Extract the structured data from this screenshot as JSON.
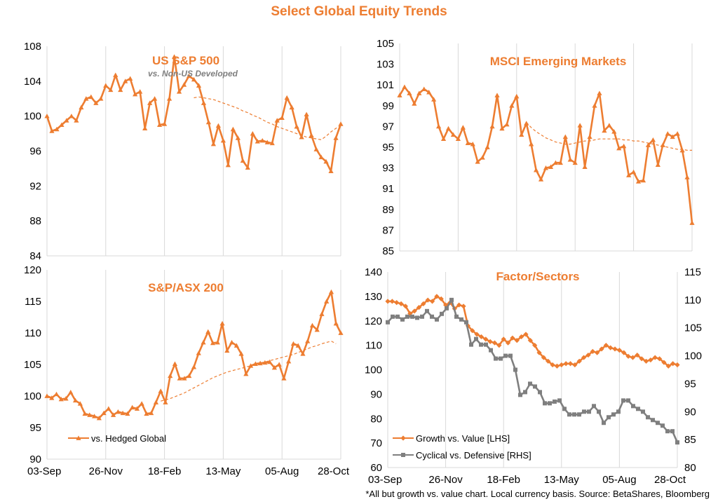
{
  "page": {
    "title": "Select Global Equity Trends",
    "footnote": "*All but growth vs. value chart. Local currency basis. Source: BetaShares, Bloomberg"
  },
  "colors": {
    "primary": "#ED7D31",
    "secondary": "#7F7F7F",
    "grid": "#D9D9D9",
    "axis": "#000000"
  },
  "x_tick_labels": [
    "03-Sep",
    "26-Nov",
    "18-Feb",
    "13-May",
    "05-Aug",
    "28-Oct"
  ],
  "chart_data": [
    {
      "id": "us",
      "type": "line",
      "title": "US S&P 500",
      "subtitle": "vs. Non-US Developed",
      "ylim": [
        84,
        108
      ],
      "yticks": [
        84,
        88,
        92,
        96,
        100,
        104,
        108
      ],
      "series": [
        {
          "role": "main",
          "values": [
            100.0,
            98.3,
            98.5,
            99.0,
            99.5,
            100.0,
            99.5,
            101.0,
            102.0,
            102.2,
            101.5,
            102.0,
            103.5,
            103.0,
            104.7,
            103.0,
            104.0,
            104.3,
            102.5,
            102.8,
            98.6,
            101.5,
            102.0,
            99.0,
            99.1,
            102.0,
            106.8,
            102.8,
            103.6,
            104.6,
            104.2,
            103.5,
            101.5,
            99.3,
            96.8,
            98.9,
            97.2,
            94.4,
            98.5,
            97.5,
            94.9,
            94.1,
            98.0,
            97.1,
            97.2,
            97.0,
            96.9,
            99.5,
            99.8,
            102.1,
            101.0,
            98.8,
            97.6,
            100.2,
            97.8,
            96.2,
            95.3,
            94.8,
            93.7,
            97.5,
            99.1
          ]
        },
        {
          "role": "trend",
          "start": 30,
          "values": [
            102.1,
            102.2,
            102.1,
            102.0,
            101.9,
            101.7,
            101.5,
            101.3,
            101.1,
            100.9,
            100.6,
            100.4,
            100.1,
            99.9,
            99.6,
            99.3,
            99.1,
            98.8,
            98.6,
            98.4,
            98.2,
            98.0,
            97.8,
            97.6,
            97.5,
            97.4,
            97.3,
            97.7,
            98.2,
            98.6,
            98.9
          ]
        }
      ]
    },
    {
      "id": "em",
      "type": "line",
      "title": "MSCI Emerging Markets",
      "ylim": [
        85,
        105
      ],
      "yticks": [
        85,
        87,
        89,
        91,
        93,
        95,
        97,
        99,
        101,
        103,
        105
      ],
      "series": [
        {
          "role": "main",
          "values": [
            100.0,
            100.8,
            100.2,
            99.2,
            100.2,
            100.6,
            100.3,
            99.6,
            97.0,
            95.8,
            96.8,
            96.2,
            95.8,
            96.9,
            95.4,
            95.3,
            93.6,
            94.0,
            95.0,
            97.0,
            100.0,
            96.8,
            97.2,
            99.0,
            99.9,
            96.2,
            97.3,
            95.3,
            92.8,
            91.9,
            93.0,
            93.1,
            93.5,
            93.5,
            96.0,
            93.8,
            93.5,
            97.1,
            93.1,
            96.0,
            99.0,
            100.2,
            96.6,
            97.1,
            96.5,
            94.9,
            95.1,
            92.3,
            92.6,
            91.7,
            91.8,
            95.2,
            95.7,
            93.3,
            95.2,
            96.3,
            96.0,
            96.3,
            94.7,
            92.1,
            87.7
          ]
        },
        {
          "role": "trend",
          "start": 26,
          "values": [
            97.4,
            96.9,
            96.5,
            96.2,
            95.9,
            95.7,
            95.5,
            95.4,
            95.3,
            95.3,
            95.4,
            95.5,
            95.6,
            95.6,
            95.7,
            95.8,
            95.8,
            95.8,
            95.8,
            95.8,
            95.7,
            95.7,
            95.6,
            95.6,
            95.5,
            95.4,
            95.3,
            95.2,
            95.1,
            95.0,
            94.9,
            94.8,
            94.8,
            94.7,
            94.7
          ]
        }
      ]
    },
    {
      "id": "asx",
      "type": "line",
      "title": "S&P/ASX 200",
      "ylim": [
        90,
        120
      ],
      "yticks": [
        90,
        95,
        100,
        105,
        110,
        115,
        120
      ],
      "legend": {
        "position": "bottom-left",
        "entries": [
          "vs. Hedged Global"
        ]
      },
      "series": [
        {
          "role": "main",
          "name": "vs. Hedged Global",
          "values": [
            100.0,
            99.7,
            100.3,
            99.5,
            99.6,
            100.6,
            99.3,
            98.8,
            97.2,
            97.0,
            96.8,
            96.5,
            97.3,
            98.0,
            97.0,
            97.5,
            97.3,
            97.2,
            98.2,
            98.0,
            98.8,
            97.2,
            97.3,
            99.0,
            100.8,
            99.0,
            103.2,
            105.1,
            102.8,
            102.8,
            103.2,
            104.6,
            106.8,
            108.5,
            110.2,
            108.4,
            108.5,
            111.5,
            107.2,
            108.5,
            108.0,
            106.7,
            103.5,
            104.8,
            105.1,
            105.2,
            105.3,
            105.4,
            104.5,
            105.0,
            102.8,
            105.5,
            108.3,
            108.0,
            106.7,
            108.7,
            111.2,
            110.5,
            113.0,
            115.0,
            116.5,
            111.5,
            110.0
          ]
        },
        {
          "role": "trend",
          "start": 24,
          "values": [
            99.2,
            99.4,
            99.6,
            99.9,
            100.2,
            100.5,
            100.9,
            101.3,
            101.7,
            102.1,
            102.5,
            102.9,
            103.2,
            103.5,
            103.8,
            104.0,
            104.2,
            104.4,
            104.6,
            104.8,
            105.0,
            105.2,
            105.4,
            105.6,
            105.8,
            106.0,
            106.2,
            106.4,
            106.6,
            106.9,
            107.2,
            107.5,
            107.8,
            108.0,
            108.3,
            108.5,
            108.7,
            108.3
          ]
        }
      ]
    },
    {
      "id": "factor",
      "type": "line",
      "title": "Factor/Sectors",
      "ylim_left": [
        60,
        140
      ],
      "yticks_left": [
        60,
        70,
        80,
        90,
        100,
        110,
        120,
        130,
        140
      ],
      "ylim_right": [
        80,
        115
      ],
      "yticks_right": [
        80,
        85,
        90,
        95,
        100,
        105,
        110,
        115
      ],
      "legend": {
        "position": "bottom-left",
        "entries": [
          "Growth vs. Value [LHS]",
          "Cyclical vs. Defensive [RHS]"
        ]
      },
      "series": [
        {
          "role": "lhs",
          "name": "Growth vs. Value [LHS]",
          "values": [
            128.0,
            128.0,
            127.5,
            127.0,
            126.0,
            123.0,
            124.0,
            125.5,
            127.0,
            128.5,
            128.0,
            130.0,
            129.0,
            126.5,
            127.5,
            125.0,
            126.5,
            126.0,
            118.0,
            116.0,
            114.5,
            113.5,
            112.5,
            111.5,
            111.0,
            110.0,
            112.5,
            111.0,
            113.0,
            112.0,
            113.5,
            114.5,
            112.0,
            110.0,
            107.0,
            105.0,
            103.5,
            102.0,
            101.5,
            102.0,
            102.5,
            102.5,
            102.0,
            103.5,
            105.0,
            106.0,
            107.5,
            107.0,
            108.5,
            110.0,
            109.0,
            108.5,
            108.0,
            107.0,
            105.5,
            105.0,
            106.0,
            104.5,
            103.5,
            104.0,
            105.0,
            104.5,
            103.0,
            101.5,
            102.5,
            102.0
          ]
        },
        {
          "role": "rhs",
          "name": "Cyclical vs. Defensive [RHS]",
          "values": [
            106.0,
            107.0,
            107.0,
            106.5,
            107.0,
            107.0,
            106.8,
            107.0,
            108.0,
            107.0,
            106.5,
            107.5,
            108.5,
            110.0,
            107.0,
            106.5,
            106.0,
            102.0,
            103.0,
            102.0,
            102.0,
            101.0,
            99.5,
            99.5,
            100.0,
            100.0,
            97.5,
            93.0,
            93.5,
            95.0,
            94.5,
            93.5,
            91.5,
            91.5,
            91.8,
            92.0,
            90.5,
            89.5,
            89.5,
            89.5,
            90.0,
            90.0,
            91.0,
            90.0,
            88.0,
            89.0,
            89.5,
            90.0,
            92.0,
            92.0,
            91.0,
            90.5,
            90.0,
            89.0,
            88.5,
            88.0,
            87.5,
            86.5,
            86.5,
            84.5
          ]
        }
      ]
    }
  ]
}
